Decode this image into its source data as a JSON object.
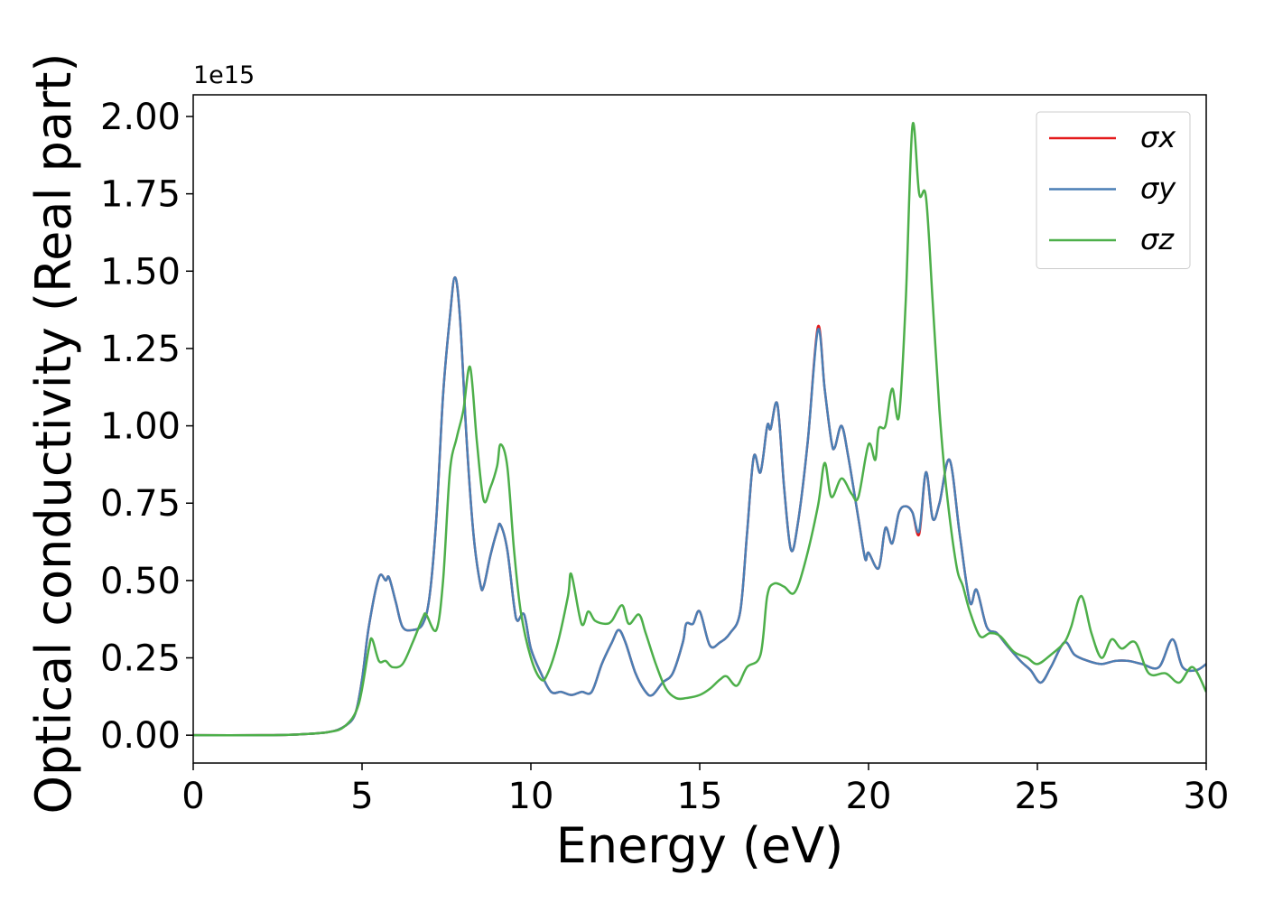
{
  "chart_data": {
    "type": "line",
    "xlabel": "Energy (eV)",
    "ylabel": "Optical conductivity (Real part)",
    "offset_label": "1e15",
    "xlim": [
      0,
      30
    ],
    "xticks": [
      0,
      5,
      10,
      15,
      20,
      25,
      30
    ],
    "ylim": [
      -0.09,
      2.07
    ],
    "yticks": [
      {
        "value": 0,
        "label": "0.00"
      },
      {
        "value": 0.25,
        "label": "0.25"
      },
      {
        "value": 0.5,
        "label": "0.50"
      },
      {
        "value": 0.75,
        "label": "0.75"
      },
      {
        "value": 1,
        "label": "1.00"
      },
      {
        "value": 1.25,
        "label": "1.25"
      },
      {
        "value": 1.5,
        "label": "1.50"
      },
      {
        "value": 1.75,
        "label": "1.75"
      },
      {
        "value": 2,
        "label": "2.00"
      }
    ],
    "legend": "upper right",
    "series": [
      {
        "name": "σx",
        "color": "#e41a1c",
        "x": [
          0,
          2,
          3,
          4,
          4.5,
          4.8,
          5,
          5.2,
          5.5,
          5.7,
          5.8,
          6,
          6.2,
          6.5,
          6.8,
          7,
          7.2,
          7.4,
          7.6,
          7.75,
          7.9,
          8.1,
          8.3,
          8.5,
          8.6,
          8.8,
          9,
          9.1,
          9.3,
          9.5,
          9.6,
          9.8,
          10,
          10.3,
          10.6,
          10.9,
          11.2,
          11.5,
          11.8,
          12.1,
          12.4,
          12.6,
          12.8,
          13.1,
          13.4,
          13.6,
          13.9,
          14.2,
          14.5,
          14.6,
          14.8,
          15,
          15.3,
          15.6,
          15.9,
          16.2,
          16.4,
          16.6,
          16.8,
          17,
          17.1,
          17.3,
          17.5,
          17.7,
          17.9,
          18.2,
          18.5,
          18.7,
          18.9,
          19,
          19.2,
          19.4,
          19.7,
          19.9,
          20,
          20.3,
          20.5,
          20.7,
          20.9,
          21.1,
          21.3,
          21.5,
          21.7,
          21.9,
          22.1,
          22.4,
          22.7,
          23,
          23.2,
          23.5,
          23.8,
          24.1,
          24.5,
          24.8,
          25.1,
          25.4,
          25.8,
          26.1,
          26.5,
          26.9,
          27.3,
          27.7,
          28.1,
          28.6,
          29,
          29.3,
          29.7,
          30
        ],
        "values": [
          0,
          0,
          0.002,
          0.01,
          0.03,
          0.07,
          0.18,
          0.35,
          0.51,
          0.5,
          0.51,
          0.43,
          0.35,
          0.34,
          0.36,
          0.45,
          0.7,
          1.1,
          1.35,
          1.48,
          1.35,
          0.95,
          0.65,
          0.49,
          0.48,
          0.58,
          0.66,
          0.68,
          0.6,
          0.42,
          0.37,
          0.39,
          0.28,
          0.2,
          0.14,
          0.14,
          0.13,
          0.14,
          0.14,
          0.23,
          0.3,
          0.34,
          0.3,
          0.2,
          0.14,
          0.13,
          0.17,
          0.2,
          0.3,
          0.36,
          0.36,
          0.4,
          0.29,
          0.3,
          0.33,
          0.4,
          0.65,
          0.9,
          0.85,
          1.0,
          0.99,
          1.07,
          0.8,
          0.6,
          0.68,
          0.95,
          1.32,
          1.12,
          0.95,
          0.93,
          1.0,
          0.9,
          0.7,
          0.57,
          0.59,
          0.54,
          0.67,
          0.62,
          0.72,
          0.74,
          0.72,
          0.65,
          0.85,
          0.7,
          0.75,
          0.89,
          0.65,
          0.43,
          0.47,
          0.35,
          0.33,
          0.29,
          0.24,
          0.21,
          0.17,
          0.22,
          0.3,
          0.26,
          0.24,
          0.23,
          0.24,
          0.24,
          0.23,
          0.22,
          0.31,
          0.22,
          0.21,
          0.23
        ]
      },
      {
        "name": "σy",
        "color": "#4a7fb5",
        "x": [
          0,
          2,
          3,
          4,
          4.5,
          4.8,
          5,
          5.2,
          5.5,
          5.7,
          5.8,
          6,
          6.2,
          6.5,
          6.8,
          7,
          7.2,
          7.4,
          7.6,
          7.75,
          7.9,
          8.1,
          8.3,
          8.5,
          8.6,
          8.8,
          9,
          9.1,
          9.3,
          9.5,
          9.6,
          9.8,
          10,
          10.3,
          10.6,
          10.9,
          11.2,
          11.5,
          11.8,
          12.1,
          12.4,
          12.6,
          12.8,
          13.1,
          13.4,
          13.6,
          13.9,
          14.2,
          14.5,
          14.6,
          14.8,
          15,
          15.3,
          15.6,
          15.9,
          16.2,
          16.4,
          16.6,
          16.8,
          17,
          17.1,
          17.3,
          17.5,
          17.7,
          17.9,
          18.2,
          18.5,
          18.7,
          18.9,
          19,
          19.2,
          19.4,
          19.7,
          19.9,
          20,
          20.3,
          20.5,
          20.7,
          20.9,
          21.1,
          21.3,
          21.5,
          21.7,
          21.9,
          22.1,
          22.4,
          22.7,
          23,
          23.2,
          23.5,
          23.8,
          24.1,
          24.5,
          24.8,
          25.1,
          25.4,
          25.8,
          26.1,
          26.5,
          26.9,
          27.3,
          27.7,
          28.1,
          28.6,
          29,
          29.3,
          29.7,
          30
        ],
        "values": [
          0,
          0,
          0.002,
          0.01,
          0.03,
          0.07,
          0.18,
          0.35,
          0.51,
          0.5,
          0.51,
          0.43,
          0.35,
          0.34,
          0.36,
          0.45,
          0.7,
          1.1,
          1.35,
          1.48,
          1.35,
          0.95,
          0.65,
          0.49,
          0.48,
          0.58,
          0.66,
          0.68,
          0.6,
          0.42,
          0.37,
          0.39,
          0.28,
          0.2,
          0.14,
          0.14,
          0.13,
          0.14,
          0.14,
          0.23,
          0.3,
          0.34,
          0.3,
          0.2,
          0.14,
          0.13,
          0.17,
          0.2,
          0.3,
          0.36,
          0.36,
          0.4,
          0.29,
          0.3,
          0.33,
          0.4,
          0.65,
          0.9,
          0.85,
          1.0,
          0.99,
          1.07,
          0.8,
          0.6,
          0.68,
          0.95,
          1.31,
          1.12,
          0.95,
          0.93,
          1.0,
          0.9,
          0.7,
          0.57,
          0.59,
          0.54,
          0.67,
          0.62,
          0.72,
          0.74,
          0.72,
          0.66,
          0.85,
          0.7,
          0.75,
          0.89,
          0.65,
          0.43,
          0.47,
          0.35,
          0.33,
          0.29,
          0.24,
          0.21,
          0.17,
          0.22,
          0.3,
          0.26,
          0.24,
          0.23,
          0.24,
          0.24,
          0.23,
          0.22,
          0.31,
          0.22,
          0.21,
          0.23
        ]
      },
      {
        "name": "σz",
        "color": "#4daf4a",
        "x": [
          0,
          2,
          3,
          4,
          4.5,
          4.9,
          5.2,
          5.3,
          5.5,
          5.7,
          5.9,
          6.2,
          6.5,
          6.8,
          6.9,
          7.2,
          7.4,
          7.6,
          7.8,
          8,
          8.2,
          8.4,
          8.6,
          8.8,
          9,
          9.1,
          9.3,
          9.5,
          9.7,
          10,
          10.3,
          10.5,
          10.8,
          11.1,
          11.2,
          11.5,
          11.7,
          11.9,
          12.2,
          12.4,
          12.7,
          12.9,
          13.2,
          13.4,
          13.7,
          14,
          14.3,
          14.6,
          15,
          15.3,
          15.6,
          15.8,
          16.1,
          16.4,
          16.8,
          17,
          17.2,
          17.5,
          17.8,
          18.1,
          18.5,
          18.7,
          18.9,
          19.2,
          19.5,
          19.7,
          20,
          20.2,
          20.3,
          20.5,
          20.7,
          20.9,
          21.1,
          21.3,
          21.5,
          21.7,
          21.9,
          22.1,
          22.3,
          22.6,
          22.8,
          23,
          23.3,
          23.6,
          23.9,
          24.3,
          24.7,
          25,
          25.4,
          25.8,
          26,
          26.3,
          26.6,
          26.9,
          27.2,
          27.5,
          27.9,
          28.3,
          28.8,
          29.2,
          29.6,
          30
        ],
        "values": [
          0,
          0,
          0.002,
          0.01,
          0.03,
          0.1,
          0.28,
          0.31,
          0.24,
          0.24,
          0.22,
          0.23,
          0.3,
          0.38,
          0.39,
          0.34,
          0.5,
          0.85,
          0.96,
          1.05,
          1.19,
          0.95,
          0.76,
          0.8,
          0.87,
          0.94,
          0.87,
          0.6,
          0.4,
          0.25,
          0.18,
          0.2,
          0.3,
          0.45,
          0.52,
          0.36,
          0.4,
          0.37,
          0.36,
          0.37,
          0.42,
          0.36,
          0.39,
          0.33,
          0.23,
          0.15,
          0.12,
          0.12,
          0.13,
          0.15,
          0.18,
          0.19,
          0.16,
          0.22,
          0.26,
          0.45,
          0.49,
          0.48,
          0.46,
          0.55,
          0.74,
          0.88,
          0.77,
          0.83,
          0.78,
          0.77,
          0.94,
          0.89,
          0.99,
          1.0,
          1.12,
          1.03,
          1.4,
          1.97,
          1.75,
          1.74,
          1.4,
          1.05,
          0.8,
          0.55,
          0.48,
          0.4,
          0.32,
          0.33,
          0.32,
          0.27,
          0.25,
          0.23,
          0.26,
          0.3,
          0.35,
          0.45,
          0.33,
          0.25,
          0.31,
          0.28,
          0.3,
          0.2,
          0.2,
          0.17,
          0.22,
          0.14
        ]
      }
    ]
  }
}
